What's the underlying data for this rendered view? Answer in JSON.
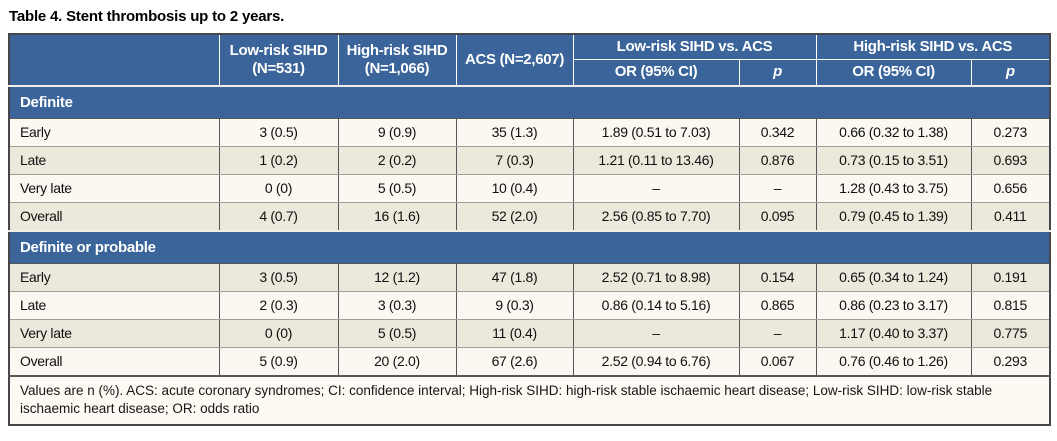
{
  "title": "Table 4. Stent thrombosis up to 2 years.",
  "colors": {
    "header_blue": "#3A649A",
    "row_beige": "#ECE8DB",
    "row_cream": "#FAF8F0",
    "border_dark": "#55565A",
    "border_light": "#A09F99"
  },
  "table": {
    "header": {
      "low_risk_line1": "Low-risk SIHD",
      "low_risk_line2": "(N=531)",
      "high_risk_line1": "High-risk SIHD",
      "high_risk_line2": "(N=1,066)",
      "acs": "ACS (N=2,607)",
      "group_low": "Low-risk SIHD vs. ACS",
      "group_high": "High-risk SIHD vs. ACS",
      "or_label": "OR (95% CI)",
      "p_label": "p"
    },
    "sections": [
      {
        "label": "Definite",
        "rows": [
          {
            "label": "Early",
            "cells": [
              "3 (0.5)",
              "9 (0.9)",
              "35 (1.3)",
              "1.89 (0.51 to 7.03)",
              "0.342",
              "0.66 (0.32 to 1.38)",
              "0.273"
            ]
          },
          {
            "label": "Late",
            "cells": [
              "1 (0.2)",
              "2 (0.2)",
              "7 (0.3)",
              "1.21 (0.11 to 13.46)",
              "0.876",
              "0.73 (0.15 to 3.51)",
              "0.693"
            ]
          },
          {
            "label": "Very late",
            "cells": [
              "0 (0)",
              "5 (0.5)",
              "10 (0.4)",
              "–",
              "–",
              "1.28 (0.43 to 3.75)",
              "0.656"
            ]
          },
          {
            "label": "Overall",
            "cells": [
              "4 (0.7)",
              "16 (1.6)",
              "52 (2.0)",
              "2.56 (0.85 to 7.70)",
              "0.095",
              "0.79 (0.45 to 1.39)",
              "0.411"
            ]
          }
        ]
      },
      {
        "label": "Definite or probable",
        "rows": [
          {
            "label": "Early",
            "cells": [
              "3 (0.5)",
              "12 (1.2)",
              "47 (1.8)",
              "2.52 (0.71 to 8.98)",
              "0.154",
              "0.65 (0.34 to 1.24)",
              "0.191"
            ]
          },
          {
            "label": "Late",
            "cells": [
              "2 (0.3)",
              "3 (0.3)",
              "9 (0.3)",
              "0.86 (0.14 to 5.16)",
              "0.865",
              "0.86 (0.23 to 3.17)",
              "0.815"
            ]
          },
          {
            "label": "Very late",
            "cells": [
              "0 (0)",
              "5 (0.5)",
              "11 (0.4)",
              "–",
              "–",
              "1.17 (0.40 to 3.37)",
              "0.775"
            ]
          },
          {
            "label": "Overall",
            "cells": [
              "5 (0.9)",
              "20 (2.0)",
              "67 (2.6)",
              "2.52 (0.94 to 6.76)",
              "0.067",
              "0.76 (0.46 to 1.26)",
              "0.293"
            ]
          }
        ]
      }
    ],
    "footnote": "Values are n (%). ACS: acute coronary syndromes; CI: confidence interval; High-risk SIHD: high-risk stable ischaemic heart disease; Low-risk SIHD: low-risk stable ischaemic heart disease; OR: odds ratio"
  }
}
